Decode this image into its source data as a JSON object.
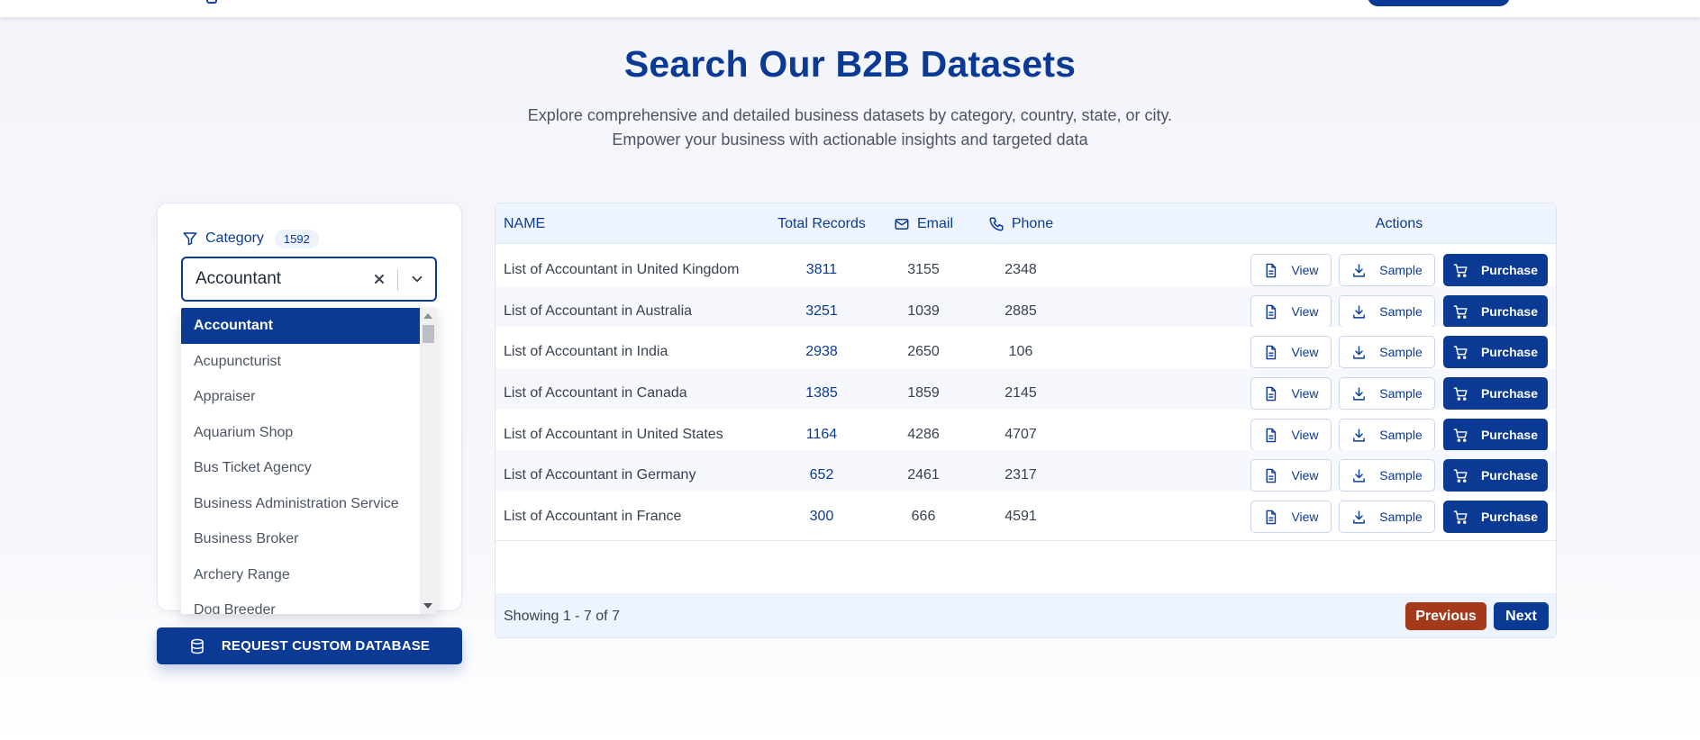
{
  "hero": {
    "title": "Search Our B2B Datasets",
    "subtitle_line1": "Explore comprehensive and detailed business datasets by category, country, state, or city.",
    "subtitle_line2": "Empower your business with actionable insights and targeted data"
  },
  "filter": {
    "label": "Category",
    "count": "1592",
    "selected_value": "Accountant",
    "icons": {
      "filter": "funnel-icon",
      "clear": "close-icon",
      "toggle": "chevron-down-icon"
    },
    "options": [
      "Accountant",
      "Acupuncturist",
      "Appraiser",
      "Aquarium Shop",
      "Bus Ticket Agency",
      "Business Administration Service",
      "Business Broker",
      "Archery Range",
      "Dog Breeder"
    ]
  },
  "request_button": {
    "label": "REQUEST CUSTOM DATABASE",
    "icon": "database-icon"
  },
  "table": {
    "headers": {
      "name": "NAME",
      "total": "Total Records",
      "email": "Email",
      "phone": "Phone",
      "actions": "Actions"
    },
    "actions": {
      "view": "View",
      "sample": "Sample",
      "purchase": "Purchase"
    },
    "rows": [
      {
        "name": "List of Accountant in United Kingdom",
        "total": "3811",
        "email": "3155",
        "phone": "2348"
      },
      {
        "name": "List of Accountant in Australia",
        "total": "3251",
        "email": "1039",
        "phone": "2885"
      },
      {
        "name": "List of Accountant in India",
        "total": "2938",
        "email": "2650",
        "phone": "106"
      },
      {
        "name": "List of Accountant in Canada",
        "total": "1385",
        "email": "1859",
        "phone": "2145"
      },
      {
        "name": "List of Accountant in United States",
        "total": "1164",
        "email": "4286",
        "phone": "4707"
      },
      {
        "name": "List of Accountant in Germany",
        "total": "652",
        "email": "2461",
        "phone": "2317"
      },
      {
        "name": "List of Accountant in France",
        "total": "300",
        "email": "666",
        "phone": "4591"
      }
    ],
    "footer": {
      "showing": "Showing 1 - 7 of 7",
      "previous": "Previous",
      "next": "Next"
    }
  },
  "colors": {
    "primary": "#0b3a94",
    "previous_button": "#a43a1b",
    "header_background": "#eef4fd"
  }
}
